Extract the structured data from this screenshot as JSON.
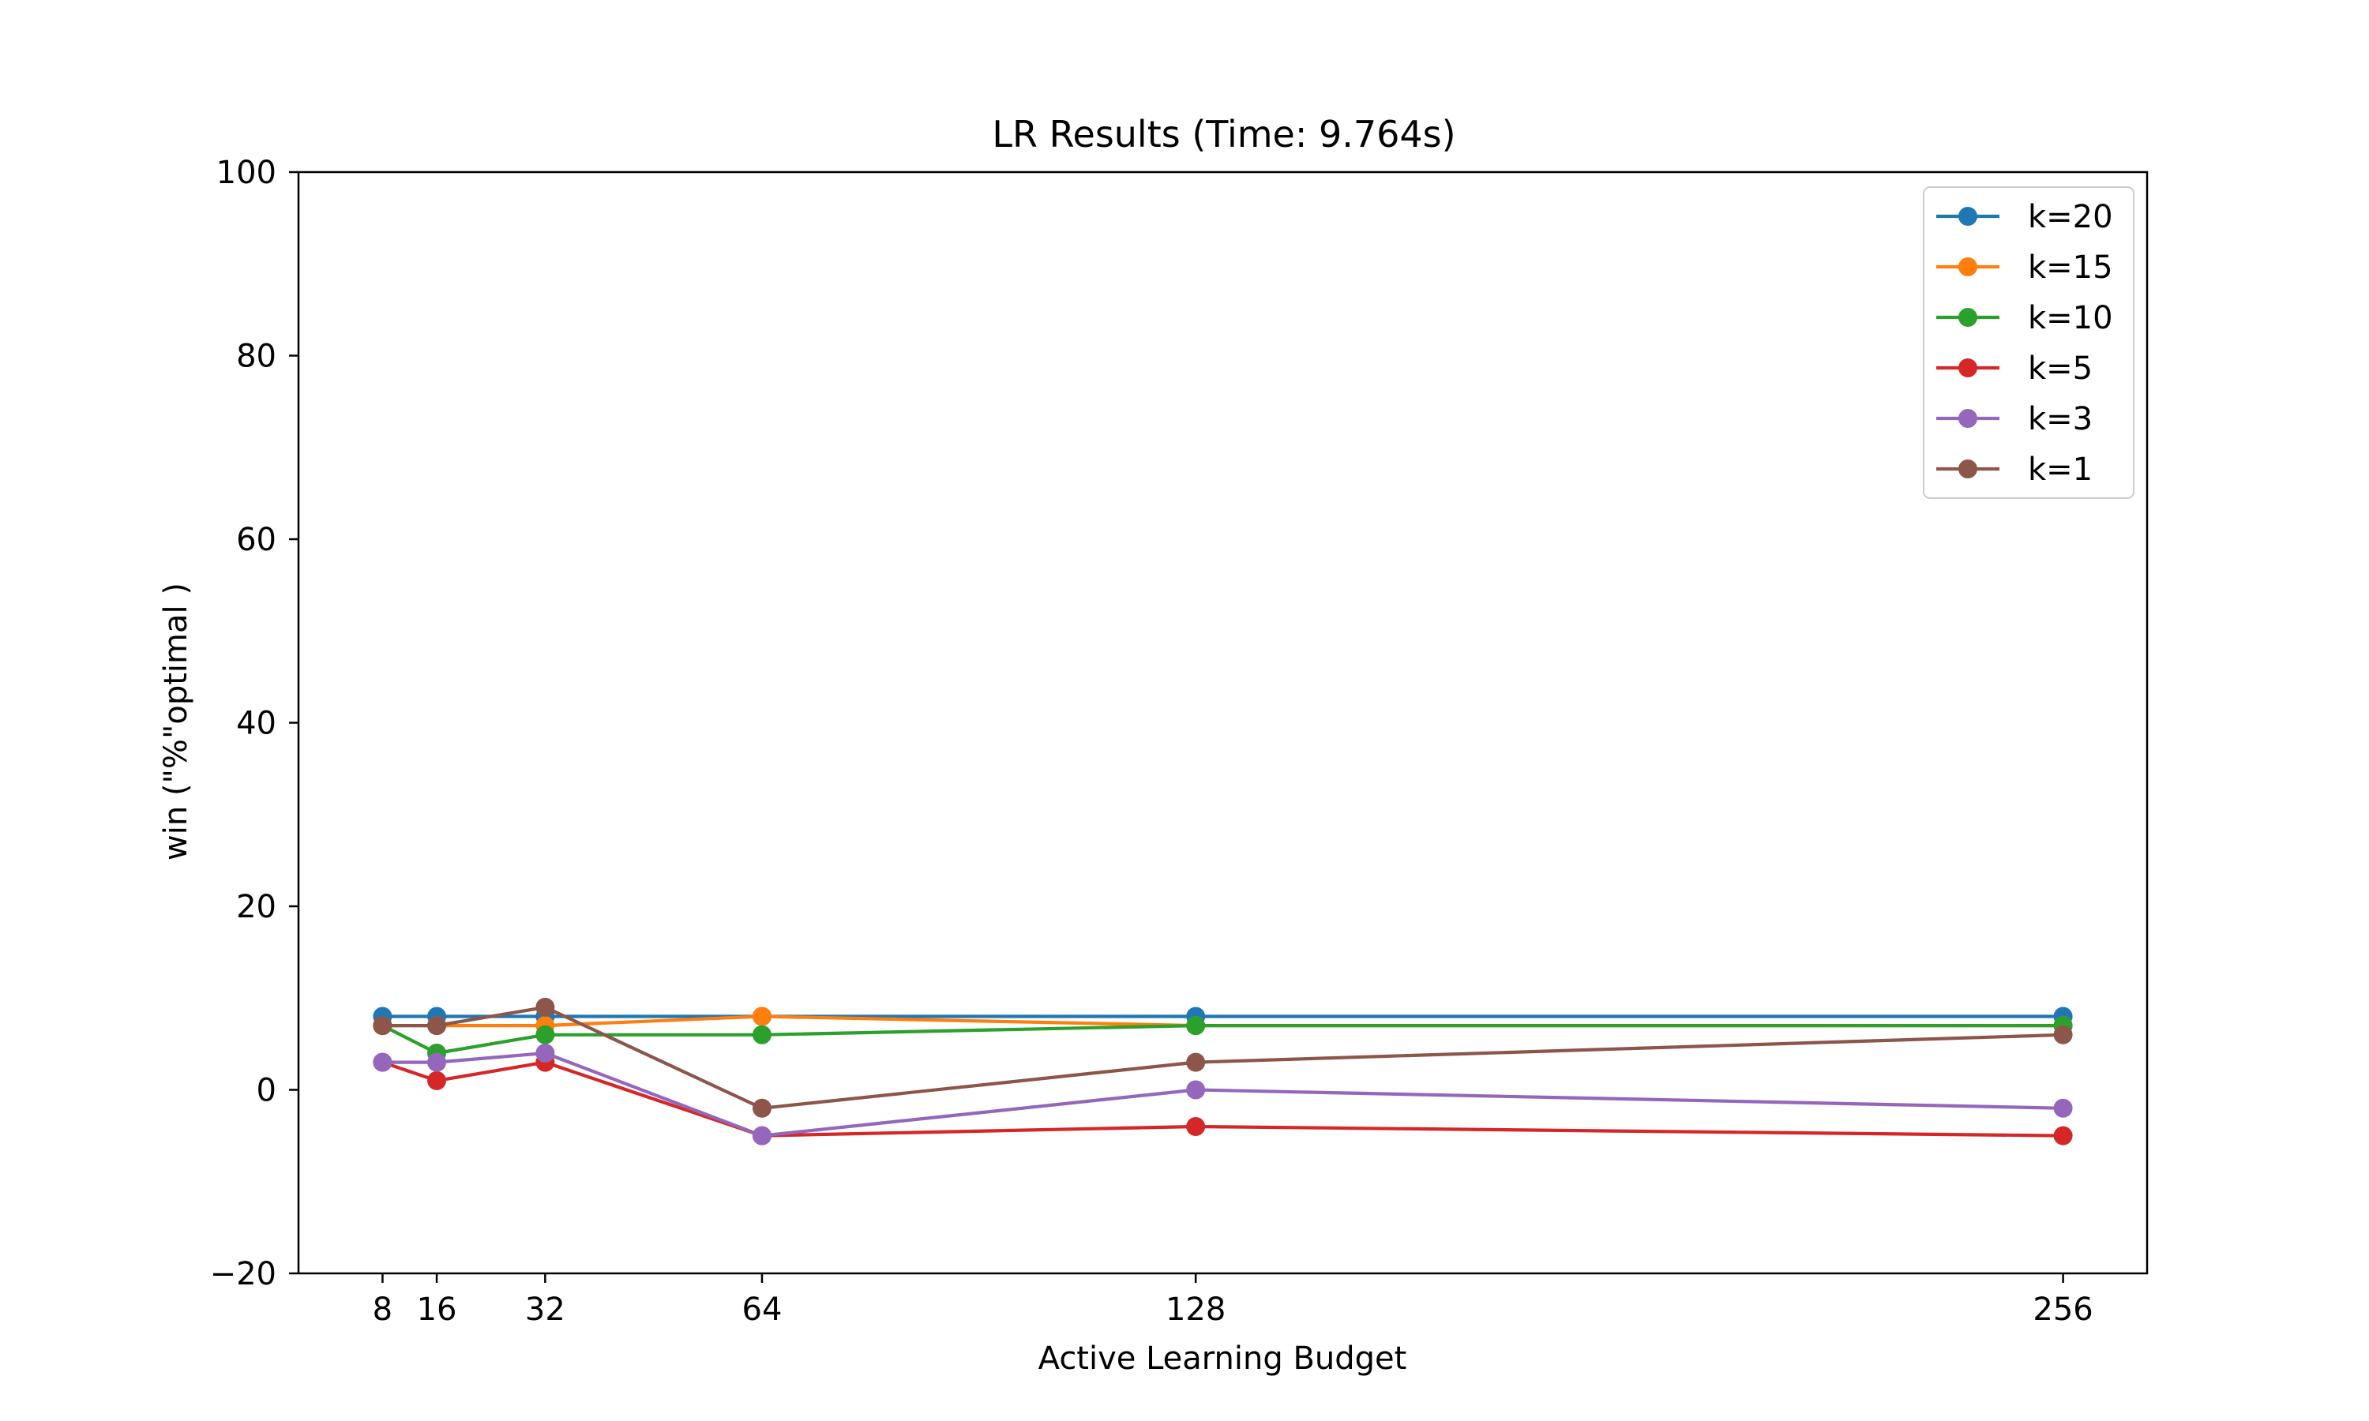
{
  "chart_data": {
    "type": "line",
    "title": "LR Results (Time: 9.764s)",
    "xlabel": "Active Learning Budget",
    "ylabel": "win (\"%\"optimal )",
    "x": [
      8,
      16,
      32,
      64,
      128,
      256
    ],
    "x_tick_labels": [
      "8",
      "16",
      "32",
      "64",
      "128",
      "256"
    ],
    "y_ticks": [
      -20,
      0,
      20,
      40,
      60,
      80,
      100
    ],
    "y_tick_labels": [
      "−20",
      "0",
      "20",
      "40",
      "60",
      "80",
      "100"
    ],
    "xlim": [
      -4.4,
      268.4
    ],
    "ylim": [
      -20,
      100
    ],
    "grid": false,
    "legend_position": "top-right",
    "series": [
      {
        "name": "k=20",
        "color": "#1f77b4",
        "values": [
          8,
          8,
          8,
          8,
          8,
          8
        ]
      },
      {
        "name": "k=15",
        "color": "#ff7f0e",
        "values": [
          7,
          7,
          7,
          8,
          7,
          7
        ]
      },
      {
        "name": "k=10",
        "color": "#2ca02c",
        "values": [
          7,
          4,
          6,
          6,
          7,
          7
        ]
      },
      {
        "name": "k=5",
        "color": "#d62728",
        "values": [
          3,
          1,
          3,
          -5,
          -4,
          -5
        ]
      },
      {
        "name": "k=3",
        "color": "#9467bd",
        "values": [
          3,
          3,
          4,
          -5,
          0,
          -2
        ]
      },
      {
        "name": "k=1",
        "color": "#8c564b",
        "values": [
          7,
          7,
          9,
          -2,
          3,
          6
        ]
      }
    ]
  }
}
